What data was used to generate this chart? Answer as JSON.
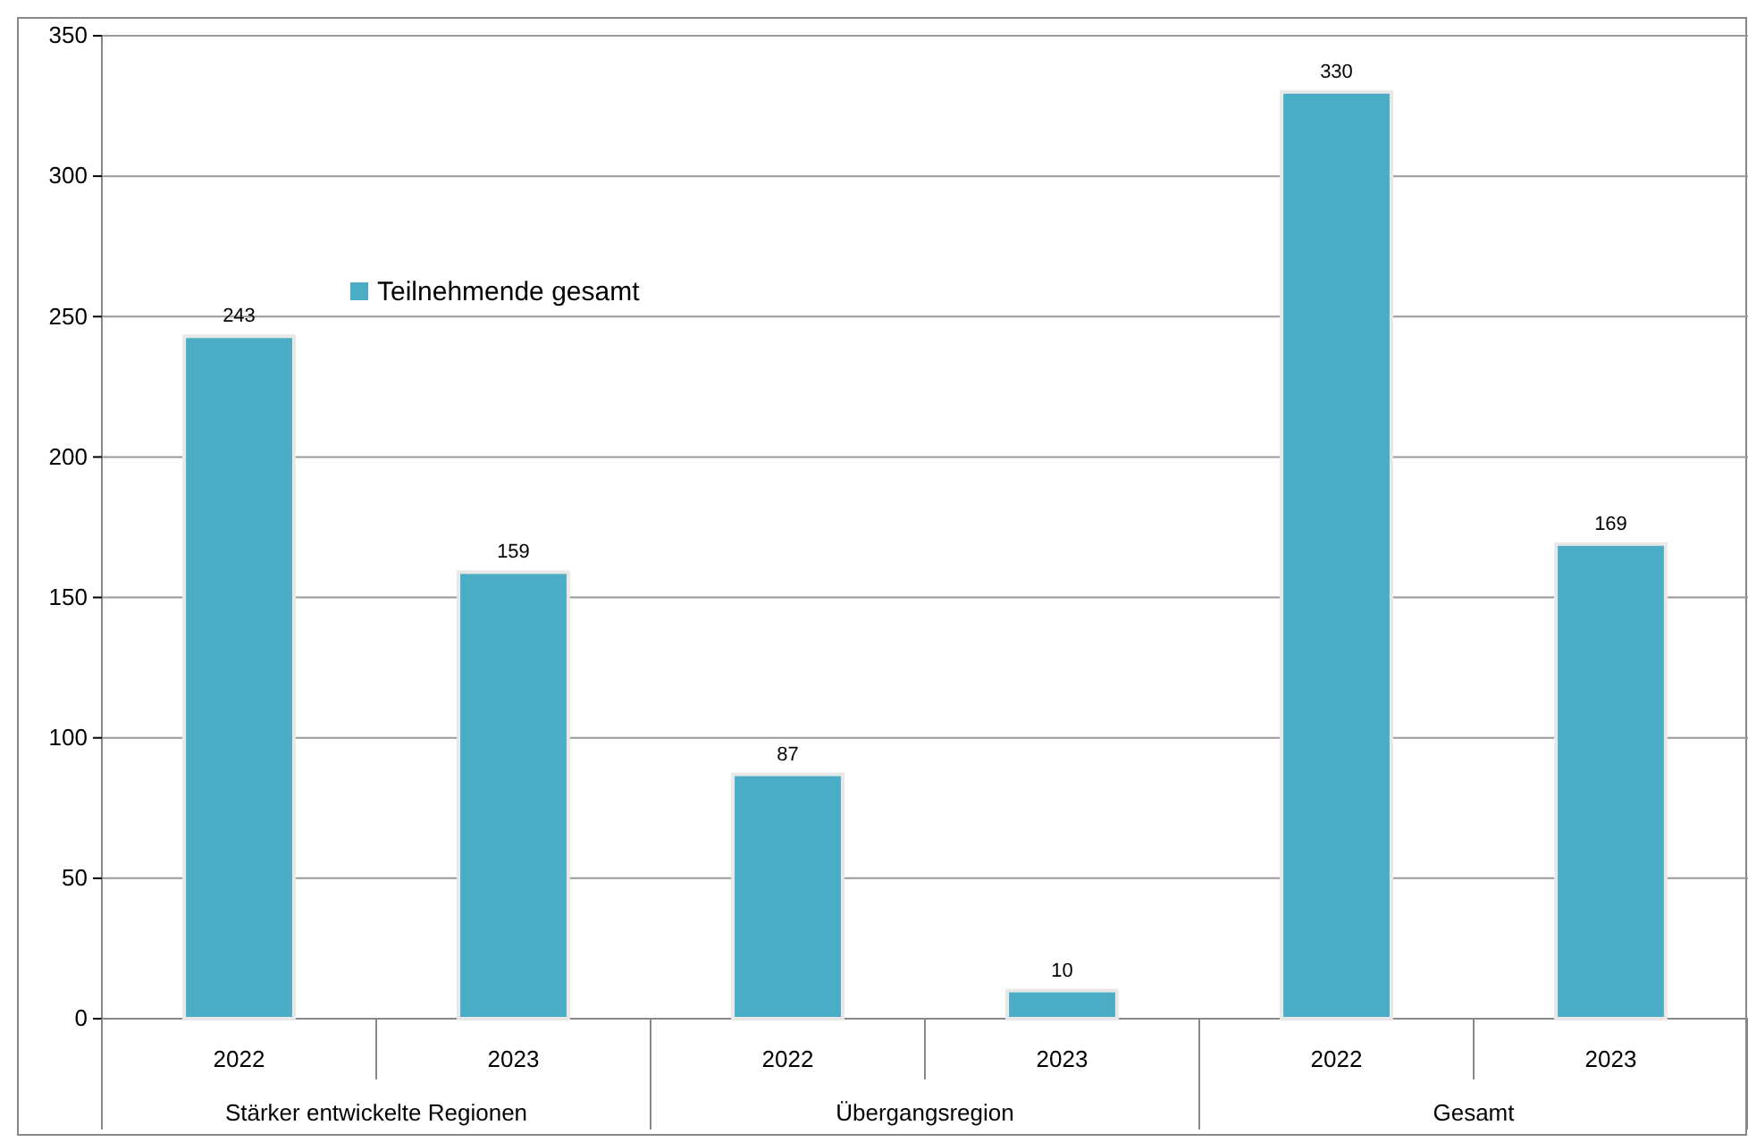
{
  "chart_data": {
    "type": "bar",
    "categories": [
      "2022",
      "2023",
      "2022",
      "2023",
      "2022",
      "2023"
    ],
    "series": [
      {
        "name": "Teilnehmende gesamt",
        "color": "#4bacc6",
        "values": [
          243,
          159,
          87,
          10,
          330,
          169
        ]
      }
    ],
    "annotations": [
      "Stärker entwickelte Regionen",
      "Übergangsregion",
      "Gesamt"
    ],
    "ylim": [
      0,
      350
    ],
    "yticks": [
      0,
      50,
      100,
      150,
      200,
      250,
      300,
      350
    ],
    "grid": "y",
    "legend": "top left",
    "data_labels": true
  }
}
